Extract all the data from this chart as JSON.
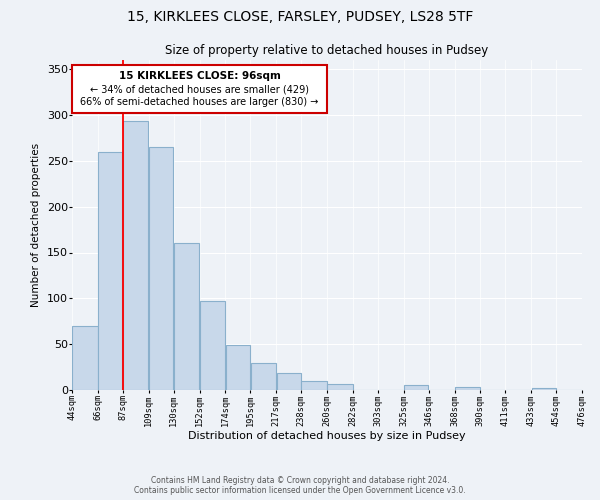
{
  "title1": "15, KIRKLEES CLOSE, FARSLEY, PUDSEY, LS28 5TF",
  "title2": "Size of property relative to detached houses in Pudsey",
  "xlabel": "Distribution of detached houses by size in Pudsey",
  "ylabel": "Number of detached properties",
  "bar_color": "#c8d8ea",
  "bar_edge_color": "#8ab0cc",
  "vline_x_idx": 2,
  "vline_color": "red",
  "annotation_title": "15 KIRKLEES CLOSE: 96sqm",
  "annotation_line1": "← 34% of detached houses are smaller (429)",
  "annotation_line2": "66% of semi-detached houses are larger (830) →",
  "bin_edges": [
    44,
    66,
    87,
    109,
    130,
    152,
    174,
    195,
    217,
    238,
    260,
    282,
    303,
    325,
    346,
    368,
    390,
    411,
    433,
    454,
    476
  ],
  "bar_heights": [
    70,
    260,
    293,
    265,
    160,
    97,
    49,
    29,
    19,
    10,
    7,
    0,
    0,
    5,
    0,
    3,
    0,
    0,
    2,
    0
  ],
  "tick_labels": [
    "44sqm",
    "66sqm",
    "87sqm",
    "109sqm",
    "130sqm",
    "152sqm",
    "174sqm",
    "195sqm",
    "217sqm",
    "238sqm",
    "260sqm",
    "282sqm",
    "303sqm",
    "325sqm",
    "346sqm",
    "368sqm",
    "390sqm",
    "411sqm",
    "433sqm",
    "454sqm",
    "476sqm"
  ],
  "ylim": [
    0,
    360
  ],
  "yticks": [
    0,
    50,
    100,
    150,
    200,
    250,
    300,
    350
  ],
  "footer1": "Contains HM Land Registry data © Crown copyright and database right 2024.",
  "footer2": "Contains public sector information licensed under the Open Government Licence v3.0.",
  "background_color": "#eef2f7",
  "plot_bg_color": "#eef2f7",
  "grid_color": "#ffffff",
  "ann_border_color": "#cc0000",
  "ann_bg_color": "#ffffff"
}
